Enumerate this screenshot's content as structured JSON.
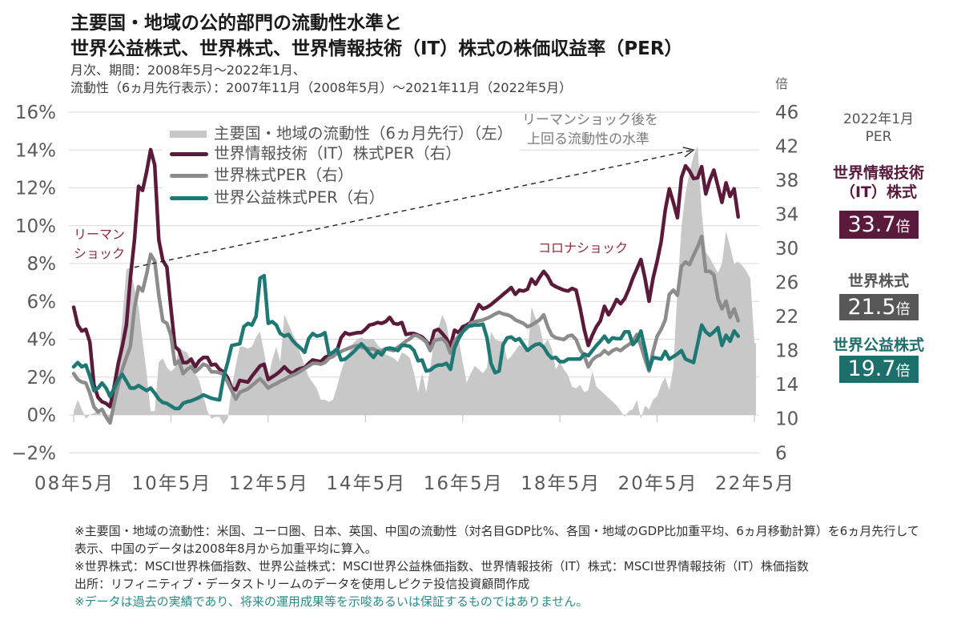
{
  "header": {
    "title_lines": [
      "主要国・地域の公的部門の流動性水準と",
      "世界公益株式、世界株式、世界情報技術（IT）株式の株価収益率（PER）"
    ],
    "subtitle_lines": [
      "月次、期間：2008年5月～2022年1月、",
      "流動性（6ヵ月先行表示）：2007年11月（2008年5月）～2021年11月（2022年5月）"
    ]
  },
  "chart_data": {
    "type": "line",
    "frequency": "monthly",
    "x_range": [
      "2008-05",
      "2022-05"
    ],
    "x_tick_step_months": 24,
    "x_ticks": [
      "08年5月",
      "10年5月",
      "12年5月",
      "14年5月",
      "16年5月",
      "18年5月",
      "20年5月",
      "22年5月"
    ],
    "y_left": {
      "unit": "%",
      "range": [
        -2,
        16
      ],
      "ticks": [
        16,
        14,
        12,
        10,
        8,
        6,
        4,
        2,
        0,
        -2
      ],
      "tick_labels": [
        "16%",
        "14%",
        "12%",
        "10%",
        "8%",
        "6%",
        "4%",
        "2%",
        "0%",
        "−2%"
      ]
    },
    "y_right": {
      "label": "倍",
      "range": [
        6,
        46
      ],
      "ticks": [
        46,
        42,
        38,
        34,
        30,
        26,
        22,
        18,
        14,
        10,
        6
      ],
      "tick_labels": [
        "46",
        "42",
        "38",
        "34",
        "30",
        "26",
        "22",
        "18",
        "14",
        "10",
        "6"
      ]
    },
    "grid": true,
    "legend_position": "top-left",
    "series": [
      {
        "id": "liquidity",
        "name": "主要国・地域の流動性（6ヵ月先行）（左）",
        "kind": "area",
        "axis": "left",
        "start": "2008-05",
        "color": "#c8c8c8",
        "values": [
          0.2,
          0.8,
          0.3,
          -0.2,
          0.0,
          0.1,
          0.2,
          0.0,
          -0.2,
          -0.4,
          0.5,
          2.9,
          5.0,
          7.7,
          7.8,
          6.7,
          5.7,
          3.9,
          2.2,
          0.2,
          0.2,
          2.8,
          3.0,
          2.5,
          2.3,
          2.5,
          3.6,
          3.4,
          3.3,
          2.8,
          2.2,
          1.8,
          1.0,
          0.2,
          -0.2,
          -0.1,
          -0.1,
          -0.5,
          -0.2,
          1.4,
          2.6,
          3.6,
          3.6,
          3.5,
          3.6,
          4.1,
          4.4,
          3.3,
          1.9,
          2.9,
          3.6,
          2.8,
          5.3,
          4.8,
          4.3,
          3.9,
          3.2,
          2.6,
          2.0,
          1.7,
          1.4,
          0.8,
          0.8,
          0.7,
          0.8,
          1.5,
          2.3,
          2.9,
          3.3,
          3.8,
          4.0,
          4.1,
          4.0,
          4.0,
          4.0,
          3.7,
          3.5,
          3.2,
          3.1,
          3.0,
          2.8,
          3.3,
          3.2,
          3.0,
          2.2,
          1.2,
          2.2,
          1.2,
          2.5,
          4.0,
          4.6,
          5.3,
          4.8,
          3.6,
          3.8,
          4.0,
          2.8,
          1.7,
          2.2,
          2.6,
          2.4,
          2.2,
          2.5,
          4.4,
          4.0,
          3.9,
          3.9,
          2.9,
          3.1,
          3.4,
          3.7,
          3.6,
          3.2,
          5.7,
          5.1,
          4.7,
          3.7,
          4.0,
          3.5,
          2.4,
          2.8,
          2.4,
          2.1,
          1.5,
          1.4,
          1.6,
          1.2,
          1.3,
          2.3,
          1.5,
          1.3,
          1.1,
          0.9,
          0.7,
          0.5,
          0.2,
          -0.1,
          0.2,
          0.3,
          0.8,
          -0.2,
          0.5,
          0.3,
          0.8,
          1.0,
          1.6,
          2.0,
          1.3,
          2.5,
          6.6,
          9.9,
          11.7,
          12.8,
          13.7,
          14.2,
          10.7,
          8.6,
          8.3,
          7.9,
          7.5,
          8.0,
          9.7,
          8.9,
          8.0,
          8.1,
          7.9,
          7.6,
          7.2,
          3.8
        ]
      },
      {
        "id": "it",
        "name": "世界情報技術（IT）株式PER（右）",
        "kind": "line",
        "axis": "right",
        "start": "2008-05",
        "color": "#5c1a3b",
        "values": [
          23.1,
          21.0,
          20.3,
          20.5,
          19.0,
          14.0,
          12.5,
          12.0,
          11.8,
          11.4,
          13.8,
          16.5,
          18.5,
          21.0,
          26.5,
          31.0,
          37.3,
          36.8,
          39.0,
          41.6,
          39.8,
          31.0,
          28.6,
          27.8,
          23.0,
          18.5,
          18.0,
          16.6,
          16.6,
          17.0,
          16.1,
          16.8,
          17.2,
          17.2,
          16.3,
          16.4,
          15.8,
          15.5,
          14.8,
          13.6,
          13.4,
          14.5,
          14.4,
          14.3,
          15.0,
          15.6,
          16.2,
          16.4,
          14.6,
          14.9,
          15.2,
          15.6,
          16.1,
          15.6,
          15.3,
          15.7,
          15.9,
          16.0,
          16.5,
          16.9,
          16.8,
          16.7,
          17.2,
          17.4,
          17.4,
          18.0,
          19.5,
          20.1,
          19.9,
          20.0,
          20.1,
          20.1,
          20.5,
          21.0,
          21.1,
          21.3,
          21.2,
          21.4,
          21.9,
          21.2,
          21.1,
          21.3,
          19.9,
          20.0,
          20.0,
          19.8,
          19.6,
          19.1,
          18.5,
          20.3,
          20.5,
          20.0,
          19.4,
          18.5,
          20.4,
          20.1,
          20.8,
          21.0,
          21.3,
          22.4,
          23.4,
          22.9,
          23.1,
          23.4,
          23.8,
          24.2,
          24.6,
          25.0,
          25.4,
          24.6,
          25.1,
          25.0,
          25.2,
          26.4,
          25.8,
          26.6,
          27.3,
          26.7,
          25.8,
          25.5,
          25.3,
          25.1,
          25.0,
          25.3,
          25.1,
          23.0,
          20.5,
          18.6,
          19.8,
          20.8,
          21.5,
          23.2,
          22.2,
          23.0,
          24.0,
          23.5,
          24.1,
          25.2,
          26.5,
          27.6,
          28.7,
          26.5,
          23.8,
          26.5,
          28.5,
          30.8,
          34.5,
          37.0,
          35.4,
          33.6,
          38.3,
          39.7,
          39.1,
          38.2,
          38.3,
          39.6,
          36.4,
          38.0,
          39.2,
          37.3,
          35.4,
          37.7,
          36.1,
          37.0,
          33.7
        ]
      },
      {
        "id": "world",
        "name": "世界株式PER（右）",
        "kind": "line",
        "axis": "right",
        "start": "2008-05",
        "color": "#8c8c8c",
        "values": [
          15.3,
          14.6,
          14.3,
          14.2,
          13.0,
          11.4,
          10.8,
          11.1,
          10.2,
          9.5,
          11.8,
          14.0,
          15.8,
          17.2,
          18.5,
          23.0,
          25.5,
          25.0,
          27.0,
          29.3,
          28.5,
          24.5,
          21.5,
          21.2,
          19.8,
          16.4,
          16.8,
          15.3,
          15.8,
          16.1,
          15.5,
          15.9,
          16.4,
          16.2,
          15.5,
          15.5,
          15.4,
          15.2,
          14.3,
          13.3,
          12.3,
          13.1,
          13.3,
          13.5,
          13.9,
          14.3,
          14.7,
          14.2,
          13.6,
          13.9,
          14.1,
          14.4,
          14.6,
          14.9,
          15.1,
          15.3,
          15.6,
          15.9,
          16.2,
          16.5,
          16.5,
          16.4,
          16.6,
          17.1,
          17.3,
          17.7,
          17.9,
          18.1,
          18.3,
          18.5,
          18.6,
          18.4,
          18.3,
          18.2,
          18.2,
          17.9,
          18.0,
          18.2,
          18.1,
          18.0,
          18.4,
          18.7,
          19.1,
          19.4,
          19.8,
          19.7,
          19.4,
          19.0,
          18.0,
          19.2,
          19.3,
          19.4,
          18.9,
          17.7,
          19.1,
          19.7,
          20.2,
          20.6,
          21.2,
          21.4,
          21.5,
          21.6,
          21.8,
          22.0,
          22.3,
          22.5,
          22.3,
          22.2,
          22.0,
          21.6,
          21.4,
          21.2,
          20.8,
          21.0,
          21.3,
          21.6,
          22.2,
          20.8,
          19.8,
          19.5,
          19.4,
          19.3,
          19.7,
          19.8,
          19.3,
          18.1,
          17.4,
          16.1,
          16.9,
          17.3,
          17.5,
          18.0,
          17.6,
          18.0,
          18.2,
          18.0,
          18.4,
          18.7,
          19.1,
          19.9,
          18.6,
          17.0,
          15.6,
          17.9,
          19.7,
          20.5,
          21.6,
          24.6,
          25.1,
          24.5,
          27.9,
          28.4,
          28.1,
          29.2,
          30.2,
          31.4,
          27.3,
          27.3,
          26.9,
          24.1,
          22.9,
          23.8,
          21.9,
          22.9,
          21.5
        ]
      },
      {
        "id": "utilities",
        "name": "世界公益株式PER（右）",
        "kind": "line",
        "axis": "right",
        "start": "2008-05",
        "color": "#1e7874",
        "values": [
          16.1,
          16.6,
          16.1,
          16.3,
          15.0,
          13.3,
          13.6,
          14.2,
          13.6,
          12.6,
          13.6,
          14.6,
          15.2,
          14.4,
          13.6,
          13.6,
          13.9,
          13.6,
          13.3,
          13.6,
          13.0,
          12.3,
          11.9,
          11.8,
          11.5,
          11.2,
          11.2,
          11.8,
          12.0,
          12.1,
          12.3,
          12.5,
          12.8,
          12.6,
          12.4,
          12.3,
          12.2,
          14.9,
          16.6,
          18.6,
          18.7,
          18.8,
          20.8,
          21.2,
          21.0,
          22.0,
          26.5,
          26.8,
          21.2,
          21.4,
          21.0,
          20.0,
          19.7,
          19.9,
          19.2,
          18.7,
          18.3,
          17.8,
          19.4,
          20.0,
          19.7,
          19.8,
          20.1,
          17.6,
          17.8,
          18.2,
          16.9,
          17.0,
          17.4,
          17.8,
          18.3,
          18.8,
          18.3,
          17.7,
          17.2,
          17.9,
          17.5,
          18.2,
          18.3,
          18.2,
          18.0,
          18.6,
          18.6,
          18.5,
          18.0,
          16.8,
          16.9,
          15.6,
          15.7,
          16.1,
          16.3,
          16.3,
          16.5,
          15.8,
          18.3,
          19.4,
          20.2,
          20.8,
          20.9,
          21.0,
          21.0,
          21.1,
          19.5,
          16.5,
          15.4,
          15.6,
          18.7,
          19.5,
          19.6,
          19.2,
          19.4,
          18.7,
          18.0,
          18.4,
          18.7,
          18.8,
          18.4,
          17.6,
          17.1,
          17.2,
          16.7,
          16.7,
          17.0,
          17.0,
          17.0,
          17.0,
          17.6,
          17.4,
          18.0,
          18.6,
          19.1,
          19.7,
          19.0,
          19.5,
          19.4,
          19.4,
          20.2,
          20.2,
          18.7,
          19.2,
          20.3,
          18.2,
          15.8,
          17.2,
          17.1,
          17.0,
          17.9,
          17.0,
          17.3,
          17.6,
          18.0,
          17.0,
          16.8,
          16.6,
          18.8,
          21.0,
          20.2,
          19.8,
          20.2,
          20.7,
          18.6,
          19.8,
          19.1,
          20.3,
          19.7
        ]
      }
    ],
    "annotations": {
      "lehman_shock": {
        "lines": [
          "リーマン",
          "ショック"
        ],
        "color": "#8b2c3c"
      },
      "corona_shock": {
        "lines": [
          "コロナショック"
        ],
        "color": "#8b2c3c"
      },
      "liquidity_note": {
        "lines": [
          "リーマンショック後を",
          "上回る流動性の水準"
        ],
        "color": "#7a7a7a"
      },
      "liquidity_arrow": {
        "axis": "left",
        "from": {
          "x": "2009-08",
          "y": 7.8
        },
        "to": {
          "x": "2021-02",
          "y": 14.0
        }
      }
    }
  },
  "side_panel": {
    "header_lines": [
      "2022年1月",
      "PER"
    ],
    "items": [
      {
        "label_lines": [
          "世界情報技術",
          "（IT）株式"
        ],
        "value": "33.7",
        "unit": "倍",
        "color": "#5a1a3c"
      },
      {
        "label_lines": [
          "世界株式"
        ],
        "value": "21.5",
        "unit": "倍",
        "color": "#575757"
      },
      {
        "label_lines": [
          "世界公益株式"
        ],
        "value": "19.7",
        "unit": "倍",
        "color": "#1d6f6c"
      }
    ]
  },
  "footer": {
    "notes": [
      "※主要国・地域の流動性：米国、ユーロ圏、日本、英国、中国の流動性（対名目GDP比%、各国・地域のGDP比加重平均、6ヵ月移動計算）を6ヵ月先行して",
      "表示、中国のデータは2008年8月から加重平均に算入。",
      "※世界株式：MSCI世界株価指数、世界公益株式：MSCI世界公益株価指数、世界情報技術（IT）株式：MSCI世界情報技術（IT）株価指数",
      "出所：リフィニティブ・データストリームのデータを使用しピクテ投信投資顧問作成"
    ],
    "disclaimer": "※データは過去の実績であり、将来の運用成果等を示唆あるいは保証するものではありません。"
  }
}
